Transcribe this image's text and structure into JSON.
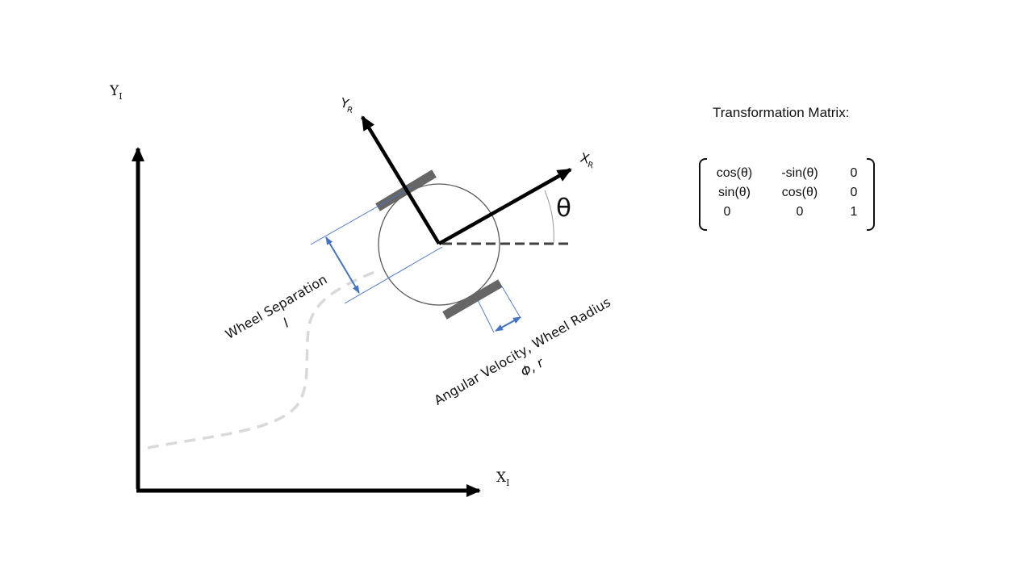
{
  "axes": {
    "inertial_y": "Y",
    "inertial_y_sub": "I",
    "inertial_x": "X",
    "inertial_x_sub": "I",
    "robot_y": "Y",
    "robot_y_sub": "R",
    "robot_x": "X",
    "robot_x_sub": "R",
    "theta": "θ"
  },
  "labels": {
    "wheel_separation": "Wheel Separation",
    "wheel_separation_symbol": "l",
    "angular_velocity": "Angular Velocity, Wheel Radius",
    "angular_velocity_symbol": "Φ, r"
  },
  "matrix": {
    "title": "Transformation Matrix:",
    "rows": [
      [
        "cos(θ)",
        "-sin(θ)",
        "0"
      ],
      [
        "sin(θ)",
        "cos(θ)",
        "0"
      ],
      [
        "0",
        "0",
        "1"
      ]
    ]
  },
  "colors": {
    "axis": "#000000",
    "wheel": "#666666",
    "dimension": "#4472C4",
    "path": "#d9d9d9",
    "circle": "#595959"
  }
}
